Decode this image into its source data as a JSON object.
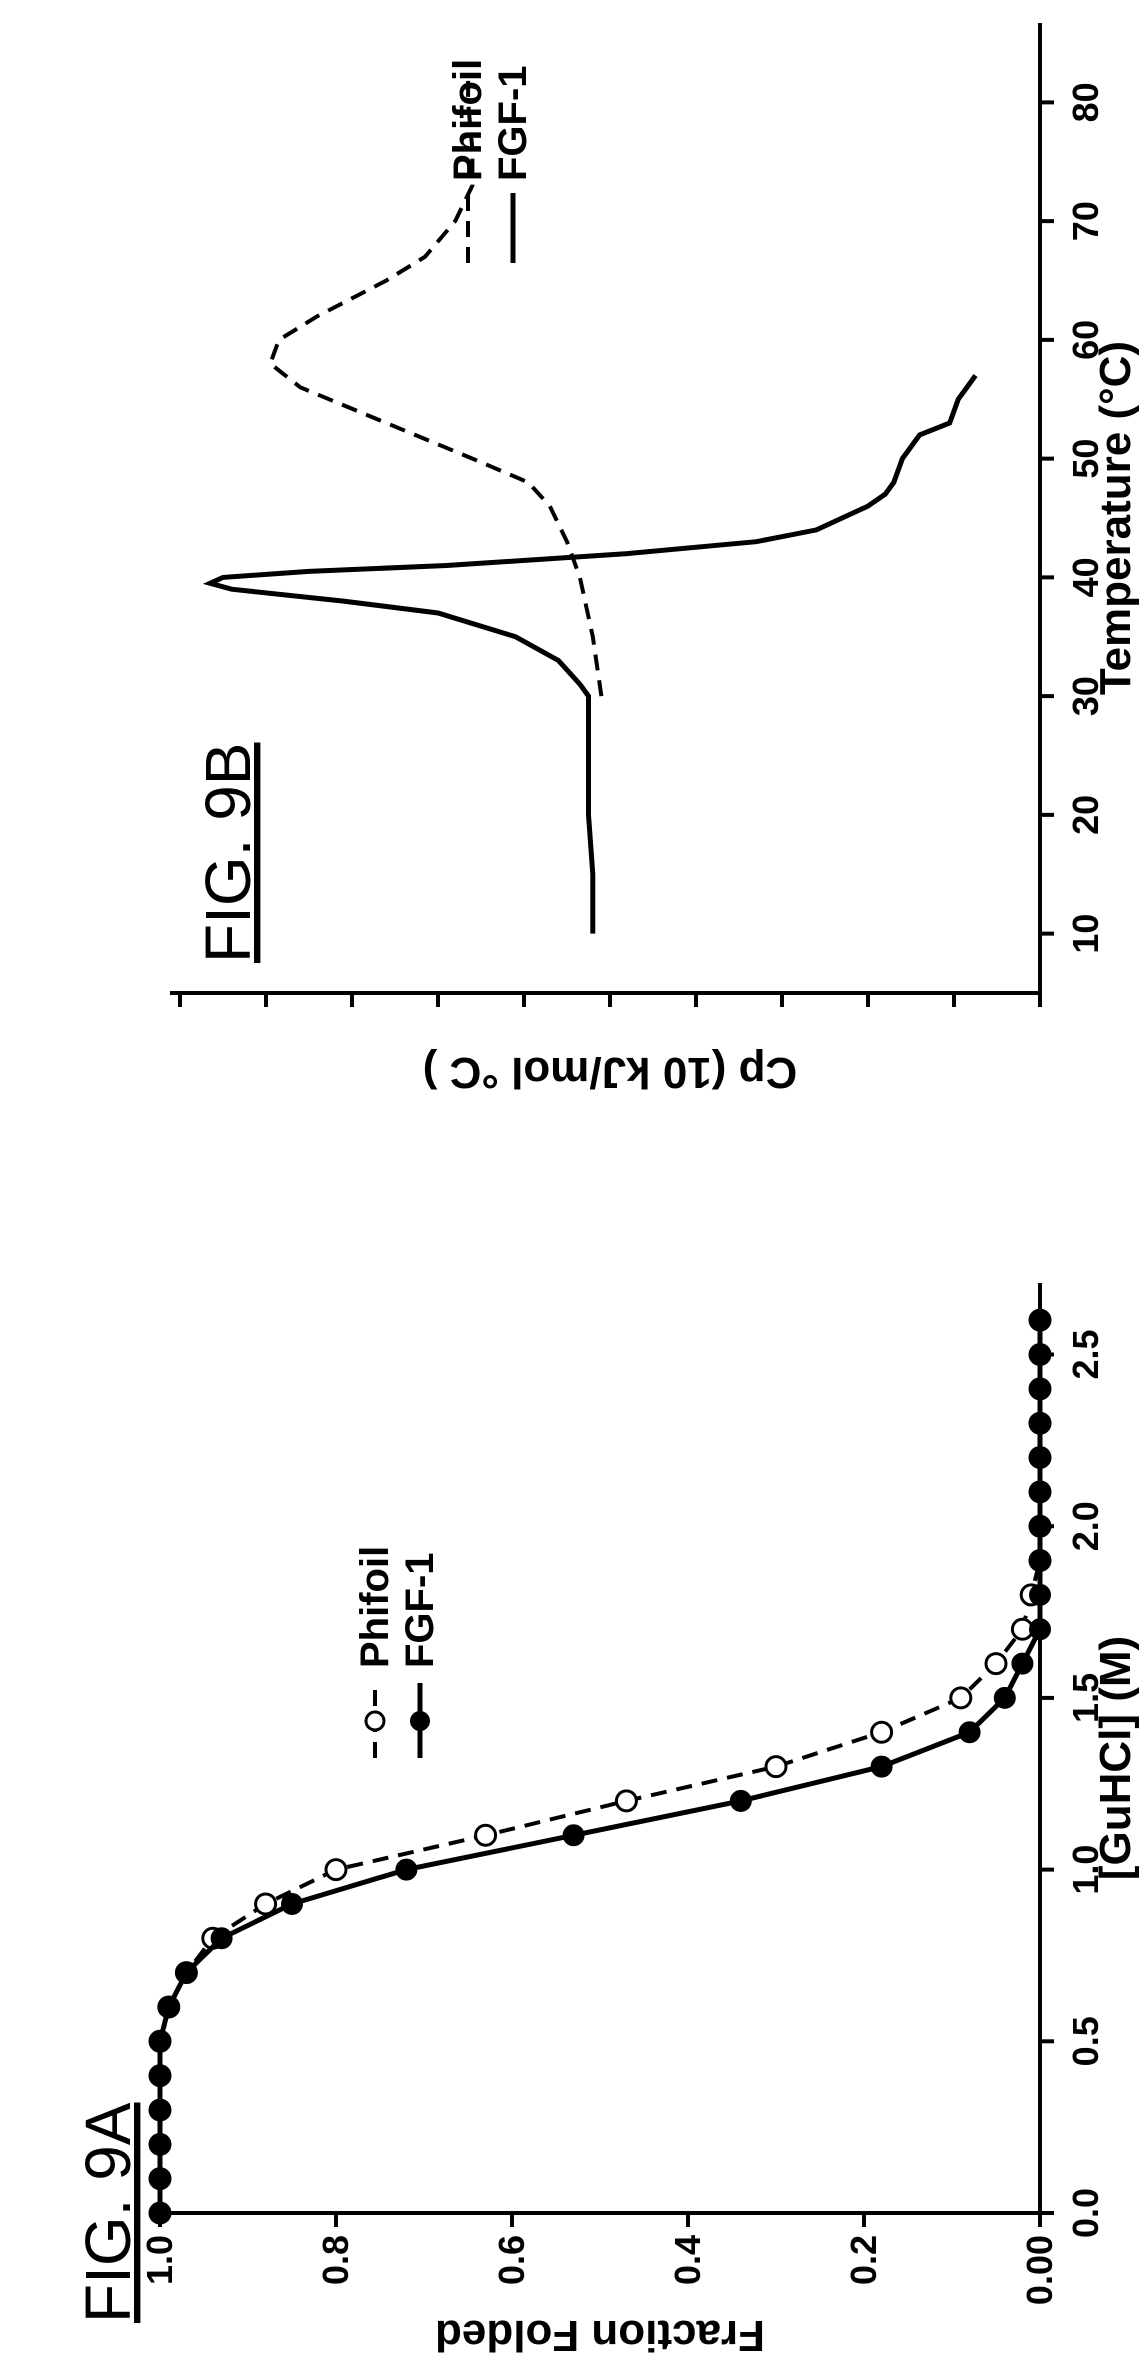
{
  "figures": [
    {
      "title": "FIG. 9A"
    },
    {
      "title": "FIG. 9B"
    }
  ],
  "chart_data": [
    {
      "type": "line",
      "xlabel": "[GuHCl] (M)",
      "ylabel": "Fraction Folded",
      "xlim": [
        0,
        2.65
      ],
      "ylim": [
        0,
        1.0
      ],
      "xticks": [
        "0.0",
        "0.5",
        "1.0",
        "1.5",
        "2.0",
        "2.5"
      ],
      "yticks": [
        "0.00",
        "0.2",
        "0.4",
        "0.6",
        "0.8",
        "1.0"
      ],
      "legend_position": "top-right",
      "series": [
        {
          "name": "Phifoil",
          "style": "dashed",
          "marker": "open-circle",
          "x": [
            0.0,
            0.1,
            0.2,
            0.3,
            0.4,
            0.5,
            0.6,
            0.7,
            0.8,
            0.9,
            1.0,
            1.1,
            1.2,
            1.3,
            1.4,
            1.5,
            1.6,
            1.7,
            1.8,
            1.9,
            2.0,
            2.1,
            2.2,
            2.3,
            2.4,
            2.5,
            2.6
          ],
          "y": [
            1.0,
            1.0,
            1.0,
            1.0,
            1.0,
            1.0,
            0.99,
            0.97,
            0.94,
            0.88,
            0.8,
            0.63,
            0.47,
            0.3,
            0.18,
            0.09,
            0.05,
            0.02,
            0.01,
            0.0,
            0.0,
            0.0,
            0.0,
            0.0,
            0.0,
            0.0,
            0.0
          ]
        },
        {
          "name": "FGF-1",
          "style": "solid",
          "marker": "filled-circle",
          "x": [
            0.0,
            0.1,
            0.2,
            0.3,
            0.4,
            0.5,
            0.6,
            0.7,
            0.8,
            0.9,
            1.0,
            1.1,
            1.2,
            1.3,
            1.4,
            1.5,
            1.6,
            1.7,
            1.8,
            1.9,
            2.0,
            2.1,
            2.2,
            2.3,
            2.4,
            2.5,
            2.6
          ],
          "y": [
            1.0,
            1.0,
            1.0,
            1.0,
            1.0,
            1.0,
            0.99,
            0.97,
            0.93,
            0.85,
            0.72,
            0.53,
            0.34,
            0.18,
            0.08,
            0.04,
            0.02,
            0.0,
            0.0,
            0.0,
            0.0,
            0.0,
            0.0,
            0.0,
            0.0,
            0.0,
            0.0
          ]
        }
      ]
    },
    {
      "type": "line",
      "xlabel": "Temperature (°C)",
      "ylabel": "Cp (10 kJ/mol °C )",
      "xlim": [
        5,
        85
      ],
      "ylim": [
        0,
        10
      ],
      "xticks": [
        "10",
        "20",
        "30",
        "40",
        "50",
        "60",
        "70",
        "80"
      ],
      "yticks": [],
      "ytick_count": 11,
      "legend_position": "top-right",
      "series": [
        {
          "name": "Phifoil",
          "style": "dashed",
          "x": [
            30,
            35,
            40,
            43,
            46,
            48,
            50,
            53,
            56,
            58,
            60,
            62,
            65,
            67,
            70,
            73,
            76,
            80,
            82
          ],
          "y": [
            5.1,
            5.2,
            5.35,
            5.5,
            5.7,
            5.95,
            6.6,
            7.6,
            8.6,
            8.95,
            8.85,
            8.4,
            7.6,
            7.15,
            6.8,
            6.6,
            6.6,
            6.65,
            6.65
          ]
        },
        {
          "name": "FGF-1",
          "style": "solid",
          "x": [
            10,
            15,
            20,
            25,
            30,
            31,
            33,
            35,
            37,
            38,
            39,
            39.5,
            40,
            40.5,
            41,
            42,
            43,
            44,
            46,
            47,
            48,
            50,
            52,
            53,
            55,
            56,
            57
          ],
          "y": [
            5.2,
            5.2,
            5.25,
            5.25,
            5.25,
            5.35,
            5.6,
            6.1,
            7.0,
            8.1,
            9.4,
            9.65,
            9.5,
            8.5,
            6.9,
            4.8,
            3.3,
            2.6,
            2.0,
            1.8,
            1.7,
            1.6,
            1.4,
            1.05,
            0.95,
            0.85,
            0.75
          ]
        }
      ]
    }
  ]
}
